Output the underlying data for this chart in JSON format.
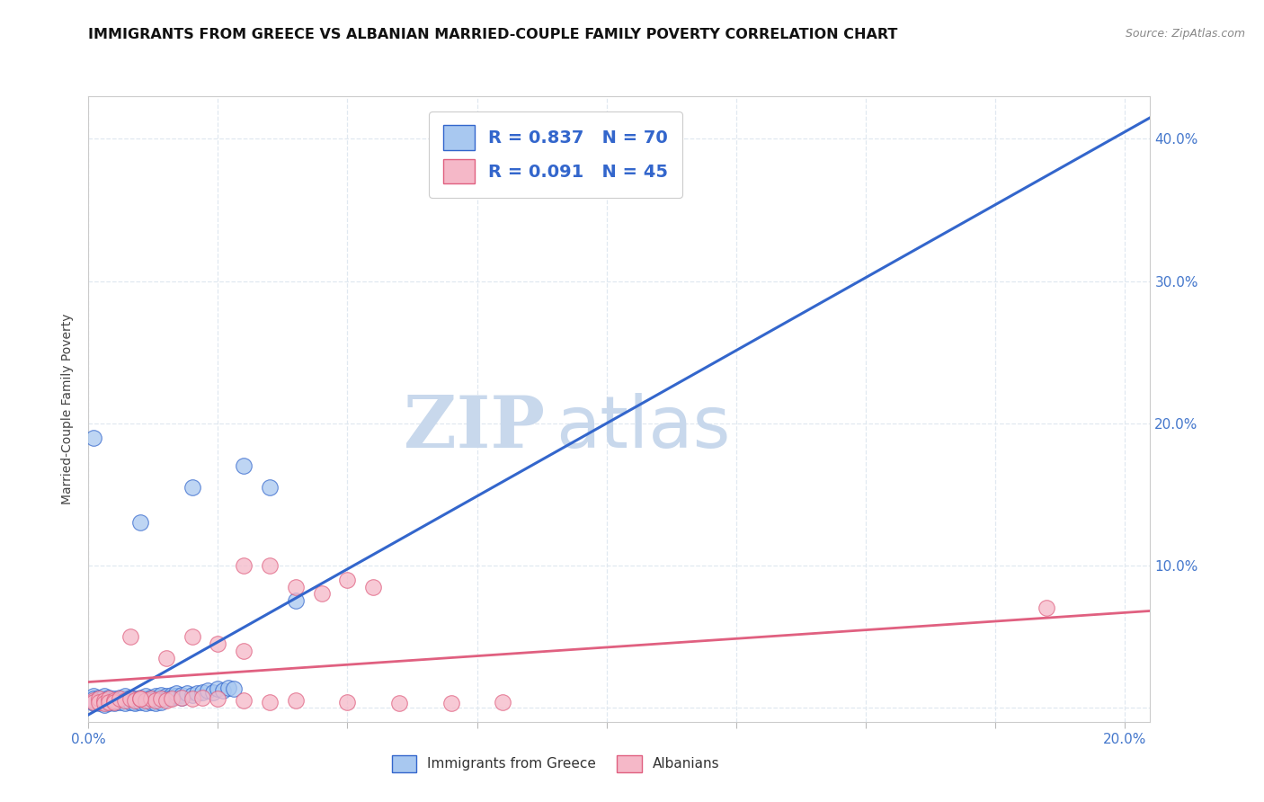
{
  "title": "IMMIGRANTS FROM GREECE VS ALBANIAN MARRIED-COUPLE FAMILY POVERTY CORRELATION CHART",
  "source": "Source: ZipAtlas.com",
  "ylabel": "Married-Couple Family Poverty",
  "xlim": [
    0.0,
    0.205
  ],
  "ylim": [
    -0.01,
    0.43
  ],
  "blue_color": "#A8C8F0",
  "blue_line_color": "#3366CC",
  "pink_color": "#F5B8C8",
  "pink_line_color": "#E06080",
  "blue_R": 0.837,
  "blue_N": 70,
  "pink_R": 0.091,
  "pink_N": 45,
  "legend_label_blue": "Immigrants from Greece",
  "legend_label_pink": "Albanians",
  "watermark_zip": "ZIP",
  "watermark_atlas": "atlas",
  "watermark_color": "#C8D8EC",
  "grid_color": "#E0E8F0",
  "blue_scatter": [
    [
      0.001,
      0.005
    ],
    [
      0.001,
      0.008
    ],
    [
      0.001,
      0.003
    ],
    [
      0.001,
      0.006
    ],
    [
      0.002,
      0.004
    ],
    [
      0.002,
      0.007
    ],
    [
      0.002,
      0.005
    ],
    [
      0.003,
      0.006
    ],
    [
      0.003,
      0.003
    ],
    [
      0.003,
      0.008
    ],
    [
      0.004,
      0.005
    ],
    [
      0.004,
      0.007
    ],
    [
      0.005,
      0.006
    ],
    [
      0.005,
      0.004
    ],
    [
      0.006,
      0.007
    ],
    [
      0.006,
      0.005
    ],
    [
      0.007,
      0.006
    ],
    [
      0.007,
      0.008
    ],
    [
      0.008,
      0.005
    ],
    [
      0.008,
      0.007
    ],
    [
      0.009,
      0.006
    ],
    [
      0.009,
      0.004
    ],
    [
      0.01,
      0.007
    ],
    [
      0.01,
      0.005
    ],
    [
      0.011,
      0.006
    ],
    [
      0.011,
      0.008
    ],
    [
      0.012,
      0.007
    ],
    [
      0.012,
      0.005
    ],
    [
      0.013,
      0.008
    ],
    [
      0.013,
      0.006
    ],
    [
      0.014,
      0.007
    ],
    [
      0.014,
      0.009
    ],
    [
      0.015,
      0.008
    ],
    [
      0.015,
      0.006
    ],
    [
      0.016,
      0.009
    ],
    [
      0.016,
      0.007
    ],
    [
      0.017,
      0.008
    ],
    [
      0.017,
      0.01
    ],
    [
      0.018,
      0.009
    ],
    [
      0.018,
      0.007
    ],
    [
      0.019,
      0.01
    ],
    [
      0.02,
      0.009
    ],
    [
      0.021,
      0.01
    ],
    [
      0.022,
      0.011
    ],
    [
      0.023,
      0.012
    ],
    [
      0.024,
      0.011
    ],
    [
      0.025,
      0.013
    ],
    [
      0.026,
      0.012
    ],
    [
      0.027,
      0.014
    ],
    [
      0.028,
      0.013
    ],
    [
      0.001,
      0.19
    ],
    [
      0.02,
      0.155
    ],
    [
      0.03,
      0.17
    ],
    [
      0.035,
      0.155
    ],
    [
      0.01,
      0.13
    ],
    [
      0.04,
      0.075
    ],
    [
      0.001,
      0.004
    ],
    [
      0.002,
      0.003
    ],
    [
      0.003,
      0.002
    ],
    [
      0.004,
      0.003
    ],
    [
      0.005,
      0.003
    ],
    [
      0.006,
      0.004
    ],
    [
      0.007,
      0.003
    ],
    [
      0.008,
      0.004
    ],
    [
      0.009,
      0.003
    ],
    [
      0.01,
      0.004
    ],
    [
      0.011,
      0.003
    ],
    [
      0.012,
      0.004
    ],
    [
      0.013,
      0.003
    ],
    [
      0.014,
      0.004
    ]
  ],
  "pink_scatter": [
    [
      0.001,
      0.005
    ],
    [
      0.001,
      0.004
    ],
    [
      0.002,
      0.006
    ],
    [
      0.002,
      0.004
    ],
    [
      0.003,
      0.005
    ],
    [
      0.003,
      0.003
    ],
    [
      0.004,
      0.006
    ],
    [
      0.004,
      0.004
    ],
    [
      0.005,
      0.005
    ],
    [
      0.005,
      0.004
    ],
    [
      0.006,
      0.006
    ],
    [
      0.007,
      0.005
    ],
    [
      0.008,
      0.006
    ],
    [
      0.009,
      0.005
    ],
    [
      0.01,
      0.006
    ],
    [
      0.011,
      0.005
    ],
    [
      0.012,
      0.006
    ],
    [
      0.013,
      0.005
    ],
    [
      0.014,
      0.006
    ],
    [
      0.015,
      0.005
    ],
    [
      0.016,
      0.006
    ],
    [
      0.018,
      0.007
    ],
    [
      0.02,
      0.006
    ],
    [
      0.022,
      0.007
    ],
    [
      0.025,
      0.006
    ],
    [
      0.03,
      0.005
    ],
    [
      0.035,
      0.004
    ],
    [
      0.04,
      0.005
    ],
    [
      0.05,
      0.004
    ],
    [
      0.06,
      0.003
    ],
    [
      0.07,
      0.003
    ],
    [
      0.08,
      0.004
    ],
    [
      0.03,
      0.1
    ],
    [
      0.035,
      0.1
    ],
    [
      0.04,
      0.085
    ],
    [
      0.045,
      0.08
    ],
    [
      0.05,
      0.09
    ],
    [
      0.055,
      0.085
    ],
    [
      0.02,
      0.05
    ],
    [
      0.025,
      0.045
    ],
    [
      0.03,
      0.04
    ],
    [
      0.015,
      0.035
    ],
    [
      0.01,
      0.006
    ],
    [
      0.008,
      0.05
    ],
    [
      0.185,
      0.07
    ]
  ],
  "blue_trendline": [
    [
      0.0,
      -0.005
    ],
    [
      0.205,
      0.415
    ]
  ],
  "pink_trendline": [
    [
      0.0,
      0.018
    ],
    [
      0.205,
      0.068
    ]
  ]
}
